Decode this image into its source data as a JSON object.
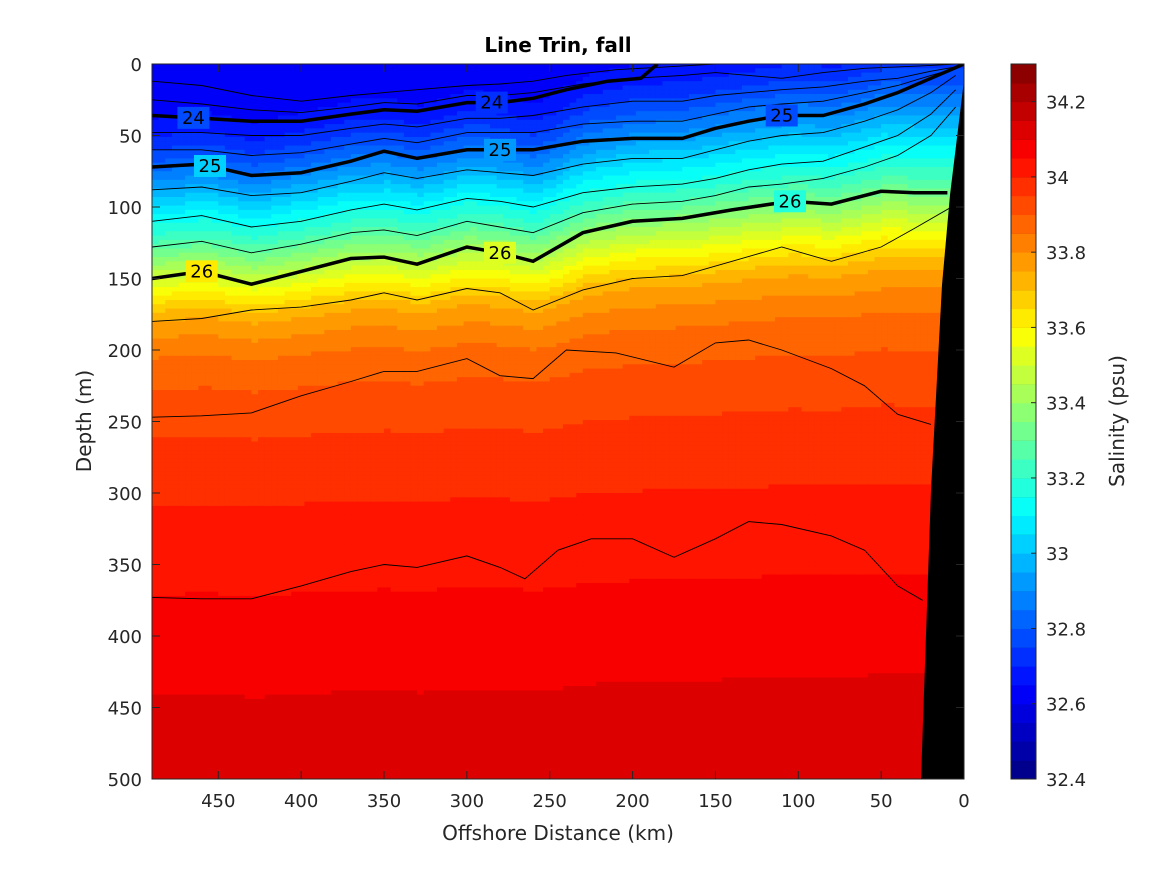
{
  "chart_data": {
    "type": "heatmap",
    "title": "Line Trin, fall",
    "xlabel": "Offshore Distance (km)",
    "ylabel": "Depth (m)",
    "colorbar_label": "Salinity (psu)",
    "xlim": [
      490,
      0
    ],
    "ylim": [
      0,
      500
    ],
    "x_reversed": true,
    "y_reversed": true,
    "x_ticks": [
      "450",
      "400",
      "350",
      "300",
      "250",
      "200",
      "150",
      "100",
      "50",
      "0"
    ],
    "x_tick_values": [
      450,
      400,
      350,
      300,
      250,
      200,
      150,
      100,
      50,
      0
    ],
    "y_ticks": [
      "0",
      "50",
      "100",
      "150",
      "200",
      "250",
      "300",
      "350",
      "400",
      "450",
      "500"
    ],
    "y_tick_values": [
      0,
      50,
      100,
      150,
      200,
      250,
      300,
      350,
      400,
      450,
      500
    ],
    "colorbar": {
      "min": 32.4,
      "max": 34.3,
      "step": 0.05,
      "tick_values": [
        32.4,
        32.6,
        32.8,
        33,
        33.2,
        33.4,
        33.6,
        33.8,
        34,
        34.2
      ],
      "tick_labels": [
        "32.4",
        "32.6",
        "32.8",
        "33",
        "33.2",
        "33.4",
        "33.6",
        "33.8",
        "34",
        "34.2"
      ]
    },
    "salinity_profile": {
      "depth": [
        0,
        20,
        40,
        60,
        80,
        100,
        120,
        140,
        160,
        180,
        200,
        250,
        300,
        350,
        400,
        450,
        500
      ],
      "salinity": [
        32.62,
        32.68,
        32.78,
        32.92,
        33.08,
        33.22,
        33.4,
        33.58,
        33.74,
        33.82,
        33.88,
        33.95,
        34.0,
        34.04,
        34.08,
        34.11,
        34.14
      ]
    },
    "isopycnals": [
      {
        "sigma": 24,
        "labels": [
          "24",
          "24"
        ],
        "label_x": [
          465,
          285
        ],
        "x": [
          490,
          460,
          430,
          400,
          370,
          350,
          330,
          300,
          280,
          260,
          240,
          215,
          195,
          185
        ],
        "depth": [
          36,
          38,
          40,
          40,
          35,
          32,
          33,
          27,
          27,
          24,
          18,
          12,
          10,
          0
        ]
      },
      {
        "sigma": 25,
        "labels": [
          "25",
          "25",
          "25"
        ],
        "label_x": [
          455,
          280,
          110
        ],
        "x": [
          490,
          460,
          430,
          400,
          370,
          350,
          330,
          300,
          280,
          260,
          230,
          200,
          170,
          150,
          130,
          110,
          85,
          60,
          40,
          20,
          0
        ],
        "depth": [
          72,
          70,
          78,
          76,
          68,
          61,
          66,
          60,
          60,
          60,
          54,
          52,
          52,
          45,
          40,
          36,
          36,
          28,
          20,
          10,
          0
        ]
      },
      {
        "sigma": 26,
        "labels": [
          "26",
          "26",
          "26"
        ],
        "label_x": [
          460,
          280,
          105
        ],
        "x": [
          490,
          460,
          430,
          400,
          370,
          350,
          330,
          300,
          280,
          260,
          230,
          200,
          170,
          140,
          105,
          80,
          50,
          30,
          10
        ],
        "depth": [
          150,
          145,
          154,
          145,
          136,
          135,
          140,
          128,
          132,
          138,
          118,
          110,
          108,
          102,
          96,
          98,
          89,
          90,
          90
        ]
      }
    ],
    "thin_contours": [
      {
        "x": [
          490,
          460,
          430,
          400,
          370,
          350,
          330,
          300,
          280,
          260,
          230,
          200,
          170,
          140,
          110,
          80,
          50,
          30,
          0
        ],
        "depth": [
          180,
          178,
          172,
          170,
          165,
          160,
          165,
          157,
          160,
          172,
          158,
          150,
          148,
          138,
          128,
          138,
          128,
          115,
          95
        ]
      },
      {
        "x": [
          490,
          460,
          430,
          400,
          370,
          350,
          330,
          300,
          280,
          260,
          240,
          210,
          175,
          150,
          130,
          110,
          80,
          60,
          40,
          20
        ],
        "depth": [
          247,
          246,
          244,
          232,
          222,
          215,
          215,
          206,
          218,
          220,
          200,
          202,
          212,
          195,
          193,
          200,
          213,
          225,
          245,
          252
        ]
      },
      {
        "x": [
          490,
          460,
          430,
          400,
          370,
          350,
          330,
          300,
          280,
          265,
          245,
          225,
          200,
          175,
          150,
          130,
          110,
          80,
          60,
          40,
          25
        ],
        "depth": [
          373,
          374,
          374,
          365,
          355,
          350,
          352,
          344,
          352,
          360,
          340,
          332,
          332,
          345,
          332,
          320,
          322,
          330,
          340,
          365,
          375
        ]
      },
      {
        "x": [
          490,
          460,
          430,
          400,
          370,
          350,
          330,
          300,
          280,
          260,
          240,
          210,
          180,
          150,
          120,
          100,
          80,
          50,
          20,
          5
        ],
        "depth": [
          12,
          15,
          22,
          26,
          22,
          20,
          18,
          15,
          14,
          12,
          8,
          4,
          2,
          0,
          0,
          0,
          0,
          0,
          0,
          0
        ]
      },
      {
        "x": [
          490,
          460,
          430,
          400,
          370,
          350,
          330,
          300,
          280,
          260,
          230,
          200,
          170,
          150,
          130,
          110,
          85,
          60,
          40,
          20,
          5
        ],
        "depth": [
          25,
          28,
          32,
          34,
          30,
          27,
          28,
          22,
          22,
          20,
          14,
          10,
          8,
          6,
          8,
          10,
          6,
          3,
          2,
          1,
          0
        ]
      },
      {
        "x": [
          490,
          460,
          430,
          400,
          370,
          350,
          330,
          300,
          280,
          260,
          230,
          200,
          170,
          150,
          130,
          110,
          85,
          60,
          40,
          20,
          5
        ],
        "depth": [
          48,
          48,
          50,
          50,
          45,
          42,
          44,
          38,
          38,
          36,
          30,
          26,
          26,
          22,
          20,
          18,
          16,
          12,
          10,
          5,
          2
        ]
      },
      {
        "x": [
          490,
          460,
          430,
          400,
          370,
          350,
          330,
          300,
          280,
          260,
          230,
          200,
          170,
          150,
          130,
          110,
          85,
          60,
          40,
          20,
          5
        ],
        "depth": [
          60,
          60,
          64,
          62,
          56,
          52,
          55,
          48,
          48,
          48,
          42,
          40,
          40,
          35,
          30,
          28,
          26,
          20,
          15,
          8,
          3
        ]
      },
      {
        "x": [
          490,
          460,
          430,
          400,
          370,
          350,
          330,
          300,
          280,
          260,
          230,
          200,
          170,
          150,
          130,
          110,
          85,
          60,
          40,
          20,
          5
        ],
        "depth": [
          88,
          86,
          92,
          90,
          82,
          76,
          80,
          74,
          76,
          78,
          70,
          66,
          66,
          60,
          54,
          50,
          48,
          40,
          32,
          20,
          8
        ]
      },
      {
        "x": [
          490,
          460,
          430,
          400,
          370,
          350,
          330,
          300,
          280,
          260,
          230,
          200,
          170,
          150,
          130,
          110,
          85,
          60,
          40,
          20,
          5
        ],
        "depth": [
          110,
          106,
          114,
          110,
          102,
          98,
          102,
          94,
          96,
          100,
          90,
          86,
          84,
          80,
          74,
          70,
          68,
          58,
          50,
          35,
          18
        ]
      },
      {
        "x": [
          490,
          460,
          430,
          400,
          370,
          350,
          330,
          300,
          280,
          260,
          230,
          200,
          170,
          150,
          130,
          110,
          85,
          60,
          40,
          20,
          5
        ],
        "depth": [
          128,
          124,
          132,
          126,
          118,
          116,
          120,
          110,
          114,
          118,
          104,
          98,
          96,
          92,
          86,
          84,
          80,
          72,
          64,
          50,
          30
        ]
      }
    ]
  }
}
